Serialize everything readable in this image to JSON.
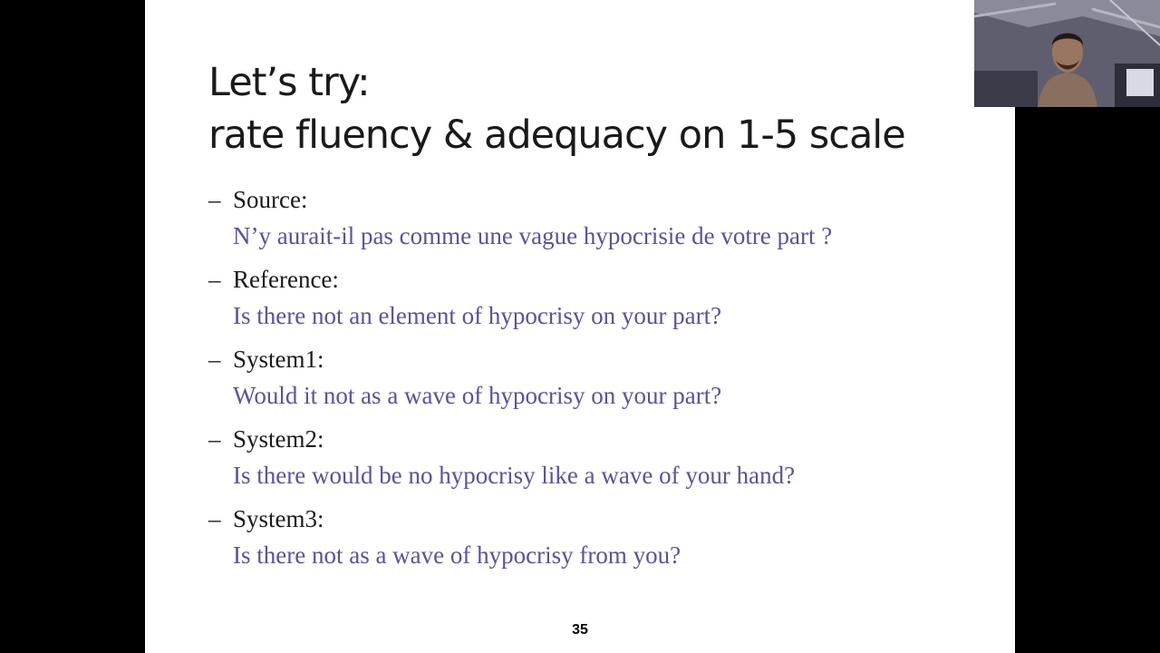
{
  "slide": {
    "title_line1": "Let’s try:",
    "title_line2": "rate fluency & adequacy on 1-5 scale",
    "items": [
      {
        "label": "Source:",
        "text": "N’y aurait-il pas comme une vague hypocrisie de votre part ?"
      },
      {
        "label": "Reference:",
        "text": "Is there not an element of hypocrisy on your part?"
      },
      {
        "label": "System1:",
        "text": "Would it not as a wave of hypocrisy on your part?"
      },
      {
        "label": "System2:",
        "text": "Is there would be no hypocrisy like a wave of your hand?"
      },
      {
        "label": "System3:",
        "text": "Is there not as a wave of hypocrisy from you?"
      }
    ],
    "bullet": "–",
    "page_number": "35"
  },
  "webcam": {
    "icon": "presenter-video-feed"
  },
  "colors": {
    "background": "#000000",
    "slide_background": "#ffffff",
    "title_text": "#1a1a1a",
    "accent_text": "#5b4fa7"
  }
}
